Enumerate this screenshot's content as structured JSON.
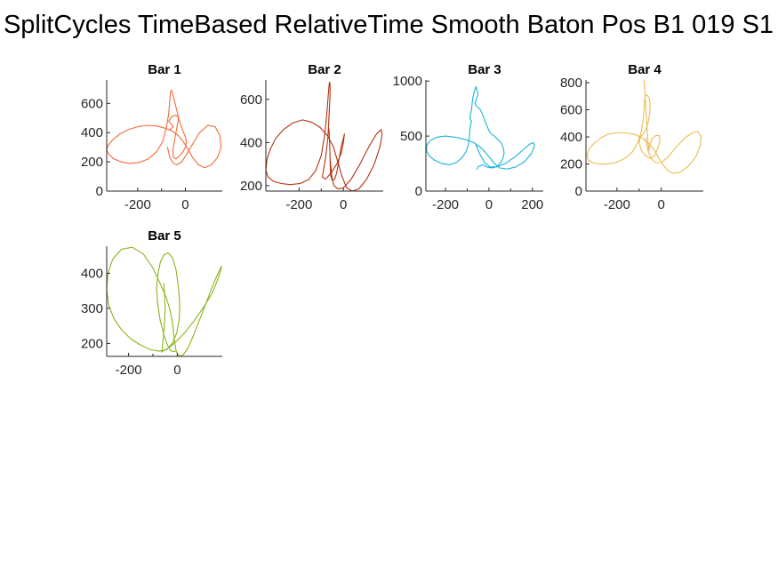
{
  "figure": {
    "title": "SplitCycles TimeBased RelativeTime Smooth Baton Pos B1 019 S1"
  },
  "chart_data": [
    {
      "type": "line",
      "title": "Bar 1",
      "color": "#f26b3a",
      "xlim": [
        -330,
        155
      ],
      "ylim": [
        0,
        760
      ],
      "xticks": [
        -200,
        0
      ],
      "yticks": [
        0,
        200,
        400,
        600
      ],
      "grid": false,
      "series": [
        {
          "x": [
            -75,
            -65,
            -50,
            -35,
            -15,
            5,
            30,
            60,
            95,
            125,
            145,
            150,
            135,
            110,
            80,
            55,
            30,
            10,
            -10,
            -30,
            -55,
            -85,
            -120,
            -160,
            -200,
            -240,
            -275,
            -305,
            -325,
            -330,
            -320,
            -300,
            -270,
            -235,
            -195,
            -155,
            -120,
            -95,
            -80,
            -70,
            -65,
            -62,
            -58,
            -52,
            -40,
            -25,
            -10,
            0,
            5,
            0,
            -10,
            -25,
            -40,
            -50,
            -52,
            -45,
            -35,
            -28,
            -40,
            -55,
            -70,
            -60,
            -50,
            -58,
            -65
          ],
          "y": [
            300,
            230,
            190,
            180,
            200,
            250,
            320,
            400,
            450,
            440,
            380,
            300,
            230,
            180,
            160,
            180,
            230,
            290,
            340,
            380,
            410,
            430,
            445,
            450,
            440,
            420,
            390,
            350,
            310,
            280,
            250,
            220,
            200,
            190,
            195,
            220,
            270,
            340,
            430,
            530,
            620,
            680,
            690,
            660,
            580,
            480,
            410,
            370,
            340,
            300,
            270,
            240,
            220,
            230,
            280,
            350,
            440,
            500,
            520,
            510,
            480,
            460,
            440,
            430,
            420
          ]
        }
      ]
    },
    {
      "type": "line",
      "title": "Bar 2",
      "color": "#b43212",
      "xlim": [
        -350,
        180
      ],
      "ylim": [
        175,
        690
      ],
      "xticks": [
        -200,
        0
      ],
      "yticks": [
        200,
        400,
        600
      ],
      "grid": false,
      "series": [
        {
          "x": [
            -60,
            -55,
            -50,
            -42,
            -25,
            0,
            35,
            75,
            115,
            150,
            170,
            175,
            165,
            140,
            105,
            70,
            40,
            15,
            -5,
            -25,
            -45,
            -70,
            -105,
            -145,
            -185,
            -230,
            -270,
            -305,
            -330,
            -345,
            -350,
            -340,
            -315,
            -280,
            -240,
            -195,
            -155,
            -125,
            -100,
            -85,
            -75,
            -68,
            -64,
            -62,
            -60,
            -60,
            -65,
            -70,
            -80,
            -90,
            -95,
            -80,
            -55,
            -30,
            -10,
            0,
            5,
            0,
            -10,
            -20,
            -30,
            -40,
            -50,
            -58,
            -60,
            -62,
            -64,
            -66,
            -68
          ],
          "y": [
            330,
            270,
            230,
            200,
            185,
            190,
            230,
            300,
            380,
            440,
            460,
            440,
            380,
            300,
            230,
            185,
            175,
            190,
            240,
            310,
            380,
            430,
            470,
            495,
            505,
            490,
            460,
            420,
            370,
            320,
            270,
            240,
            220,
            210,
            205,
            210,
            230,
            270,
            340,
            430,
            530,
            620,
            670,
            680,
            670,
            620,
            520,
            420,
            330,
            270,
            240,
            230,
            260,
            300,
            350,
            400,
            440,
            420,
            380,
            320,
            260,
            230,
            225,
            250,
            330,
            400,
            450,
            465,
            460
          ]
        }
      ]
    },
    {
      "type": "line",
      "title": "Bar 3",
      "color": "#1ab4d8",
      "xlim": [
        -290,
        250
      ],
      "ylim": [
        0,
        1010
      ],
      "xticks": [
        -200,
        0,
        200
      ],
      "yticks": [
        0,
        500,
        1000
      ],
      "grid": false,
      "series": [
        {
          "x": [
            -60,
            -40,
            -20,
            5,
            35,
            75,
            120,
            160,
            190,
            205,
            210,
            195,
            165,
            125,
            85,
            50,
            25,
            5,
            -15,
            -40,
            -70,
            -110,
            -155,
            -200,
            -240,
            -270,
            -285,
            -288,
            -275,
            -250,
            -215,
            -180,
            -150,
            -125,
            -105,
            -95,
            -90,
            -88,
            -85,
            -82,
            -80,
            -85,
            -88,
            -85,
            -80,
            -78,
            -76,
            -73,
            -68,
            -60,
            -55,
            -50,
            -55,
            -60,
            -65,
            -60,
            -50,
            -40,
            -30,
            -15,
            0,
            10,
            25,
            40,
            55,
            65,
            70,
            65,
            55,
            40,
            25,
            10,
            -10,
            -30,
            -50,
            -55
          ],
          "y": [
            420,
            330,
            260,
            220,
            220,
            250,
            310,
            380,
            430,
            440,
            410,
            340,
            270,
            220,
            200,
            210,
            250,
            300,
            350,
            400,
            440,
            470,
            490,
            500,
            490,
            460,
            420,
            370,
            320,
            280,
            250,
            240,
            260,
            300,
            360,
            420,
            490,
            550,
            590,
            620,
            640,
            650,
            660,
            700,
            740,
            780,
            820,
            860,
            900,
            950,
            920,
            880,
            850,
            820,
            800,
            780,
            760,
            740,
            700,
            620,
            550,
            520,
            500,
            470,
            440,
            400,
            350,
            300,
            260,
            230,
            215,
            210,
            220,
            240,
            220,
            200
          ]
        }
      ]
    },
    {
      "type": "line",
      "title": "Bar 4",
      "color": "#ecba50",
      "xlim": [
        -340,
        190
      ],
      "ylim": [
        0,
        820
      ],
      "xticks": [
        -200,
        0
      ],
      "yticks": [
        0,
        200,
        400,
        600,
        800
      ],
      "grid": false,
      "series": [
        {
          "x": [
            -70,
            -60,
            -45,
            -25,
            0,
            30,
            65,
            105,
            140,
            165,
            180,
            175,
            155,
            120,
            85,
            55,
            30,
            10,
            -10,
            -30,
            -55,
            -85,
            -120,
            -160,
            -200,
            -240,
            -275,
            -305,
            -325,
            -335,
            -330,
            -310,
            -280,
            -245,
            -205,
            -165,
            -130,
            -105,
            -90,
            -82,
            -78,
            -76,
            -72,
            -65,
            -55,
            -50,
            -52,
            -60,
            -70,
            -82,
            -95,
            -100,
            -90,
            -70,
            -50,
            -30,
            -15,
            -5,
            -10,
            -25,
            -40,
            -50,
            -55,
            -60,
            -65,
            -70,
            -75,
            -78,
            -80
          ],
          "y": [
            390,
            300,
            240,
            210,
            210,
            250,
            320,
            390,
            430,
            440,
            400,
            330,
            250,
            180,
            140,
            130,
            150,
            190,
            240,
            300,
            350,
            390,
            420,
            430,
            430,
            420,
            390,
            350,
            310,
            270,
            230,
            210,
            200,
            200,
            210,
            240,
            290,
            360,
            440,
            520,
            600,
            660,
            700,
            710,
            690,
            640,
            570,
            500,
            450,
            420,
            400,
            360,
            300,
            260,
            240,
            260,
            320,
            380,
            410,
            410,
            390,
            350,
            300,
            360,
            500,
            640,
            760,
            820,
            830
          ]
        }
      ]
    },
    {
      "type": "line",
      "title": "Bar 5",
      "color": "#8ab41e",
      "xlim": [
        -290,
        185
      ],
      "ylim": [
        163,
        477
      ],
      "xticks": [
        -200,
        0
      ],
      "yticks": [
        200,
        300,
        400
      ],
      "grid": false,
      "series": [
        {
          "x": [
            -55,
            -52,
            -50,
            -52,
            -56,
            -60,
            -62,
            -63,
            -64,
            -65,
            -60,
            -48,
            -30,
            -5,
            30,
            70,
            110,
            145,
            168,
            180,
            182,
            175,
            158,
            135,
            110,
            85,
            62,
            42,
            25,
            12,
            2,
            -5,
            -10,
            -15,
            -20,
            -30,
            -45,
            -70,
            -100,
            -140,
            -185,
            -230,
            -265,
            -285,
            -290,
            -282,
            -260,
            -228,
            -190,
            -150,
            -110,
            -75,
            -45,
            -20,
            -2,
            8,
            10,
            5,
            -5,
            -20,
            -38,
            -55,
            -70,
            -80,
            -85,
            -80,
            -70,
            -55,
            -40,
            -28,
            -15,
            -8
          ],
          "y": [
            370,
            340,
            300,
            260,
            225,
            198,
            182,
            177,
            175,
            176,
            178,
            182,
            190,
            205,
            230,
            265,
            305,
            345,
            385,
            412,
            420,
            410,
            385,
            345,
            300,
            255,
            215,
            185,
            168,
            164,
            168,
            180,
            200,
            228,
            260,
            295,
            330,
            370,
            415,
            455,
            474,
            468,
            440,
            400,
            355,
            310,
            270,
            238,
            212,
            195,
            182,
            178,
            182,
            200,
            230,
            270,
            315,
            360,
            410,
            445,
            458,
            452,
            430,
            395,
            355,
            310,
            265,
            225,
            195,
            180,
            176,
            178
          ]
        }
      ]
    }
  ]
}
